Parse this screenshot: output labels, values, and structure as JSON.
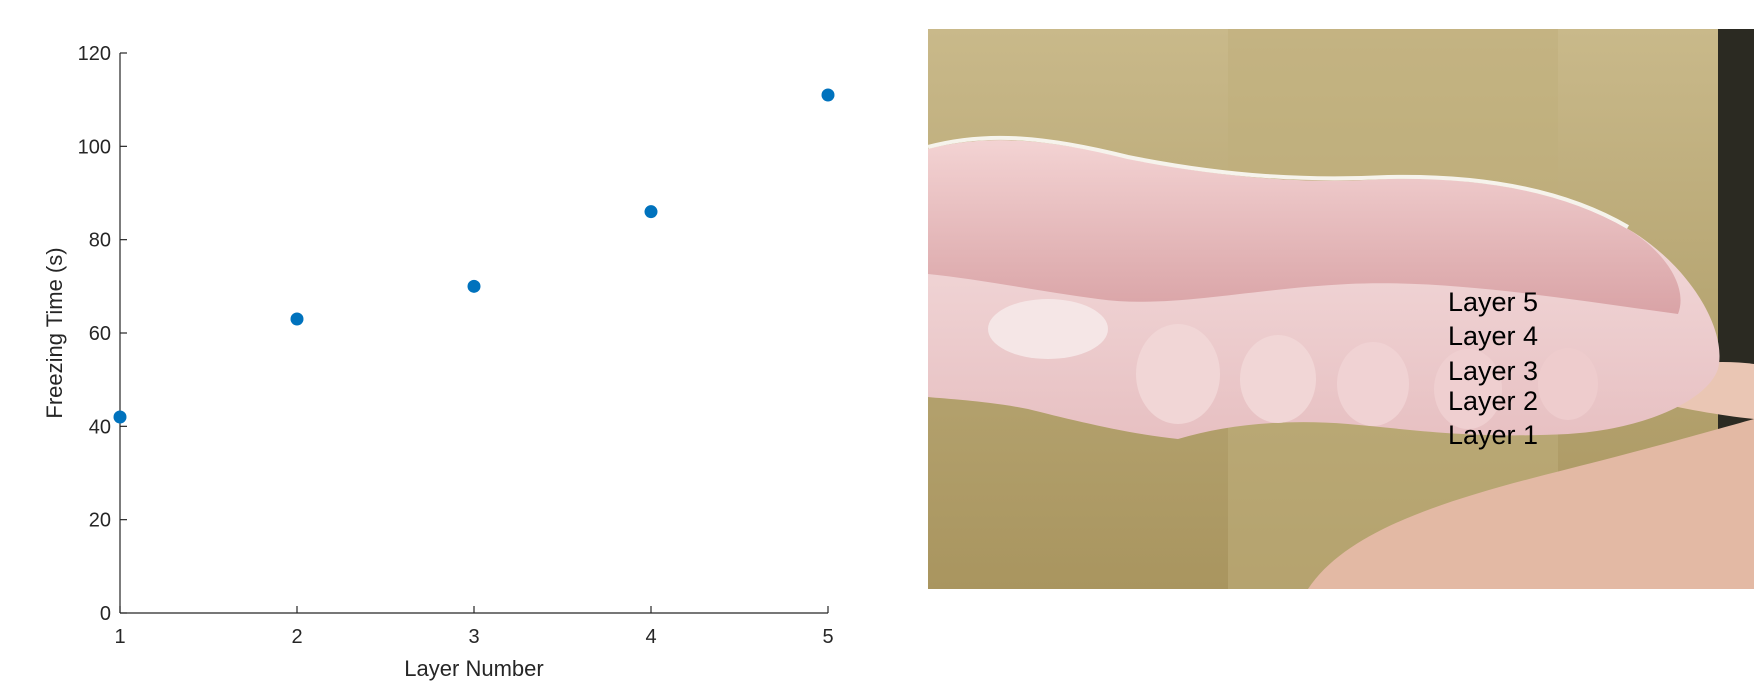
{
  "chart_data": {
    "type": "scatter",
    "x": [
      1,
      2,
      3,
      4,
      5
    ],
    "y": [
      42,
      63,
      70,
      86,
      111
    ],
    "xlabel": "Layer Number",
    "ylabel": "Freezing Time (s)",
    "xlim": [
      1,
      5
    ],
    "ylim": [
      0,
      120
    ],
    "xticks": [
      1,
      2,
      3,
      4,
      5
    ],
    "yticks": [
      0,
      20,
      40,
      60,
      80,
      100,
      120
    ],
    "grid": false,
    "marker_color": "#0072BD"
  },
  "photo": {
    "layer_labels": [
      "Layer 5",
      "Layer 4",
      "Layer 3",
      "Layer 2",
      "Layer 1"
    ]
  }
}
